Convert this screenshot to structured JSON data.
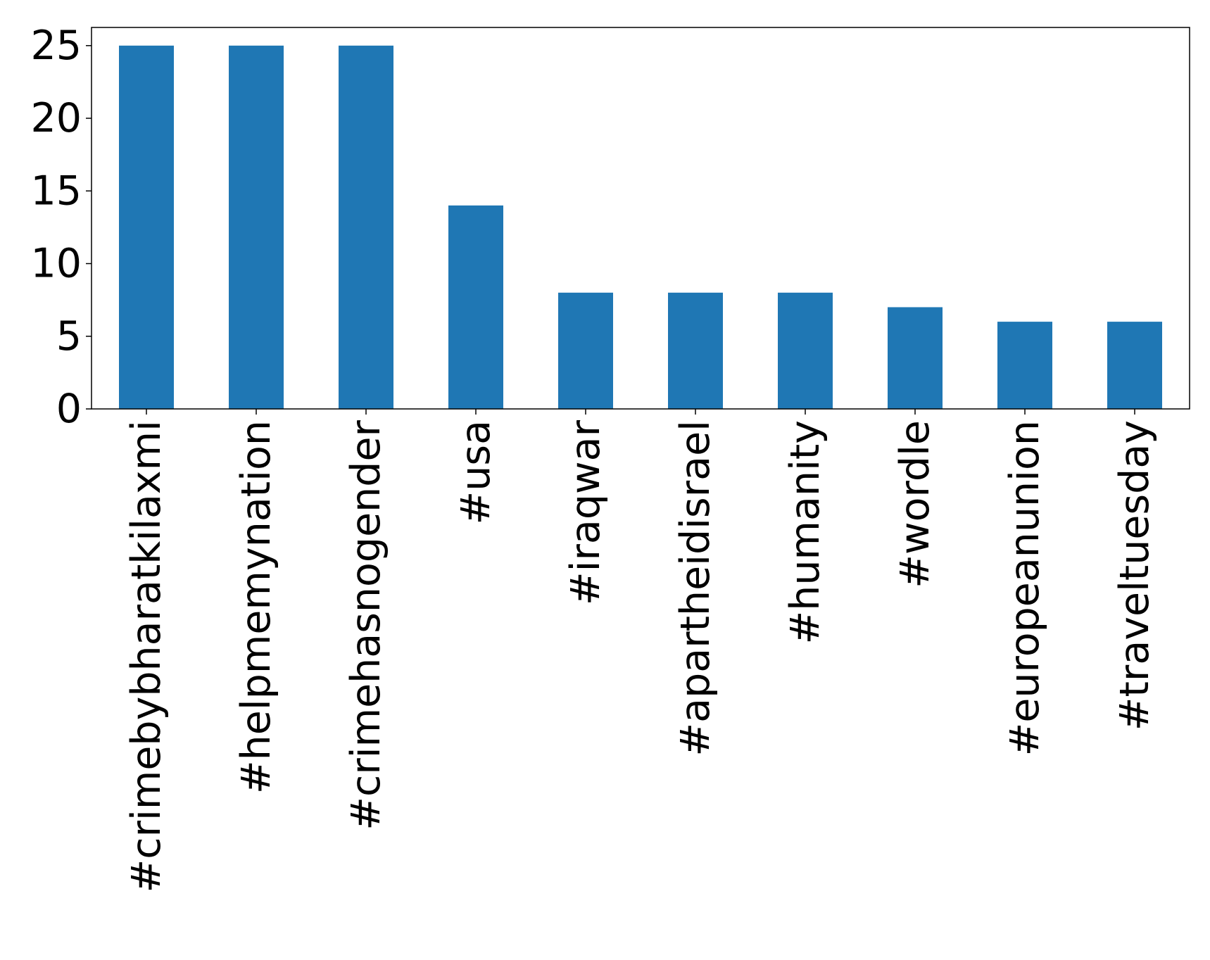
{
  "chart_data": {
    "type": "bar",
    "categories": [
      "#crimebybharatkilaxmi",
      "#helpmemynation",
      "#crimehasnogender",
      "#usa",
      "#iraqwar",
      "#apartheidisrael",
      "#humanity",
      "#wordle",
      "#europeanunion",
      "#traveltuesday"
    ],
    "values": [
      25,
      25,
      25,
      14,
      8,
      8,
      8,
      7,
      6,
      6
    ],
    "title": "",
    "xlabel": "",
    "ylabel": "",
    "ylim": [
      0,
      26.25
    ],
    "yticks": [
      0,
      5,
      10,
      15,
      20,
      25
    ],
    "bar_color": "#1f77b4",
    "grid": false,
    "legend": "none",
    "xtick_rotation": "vertical"
  }
}
